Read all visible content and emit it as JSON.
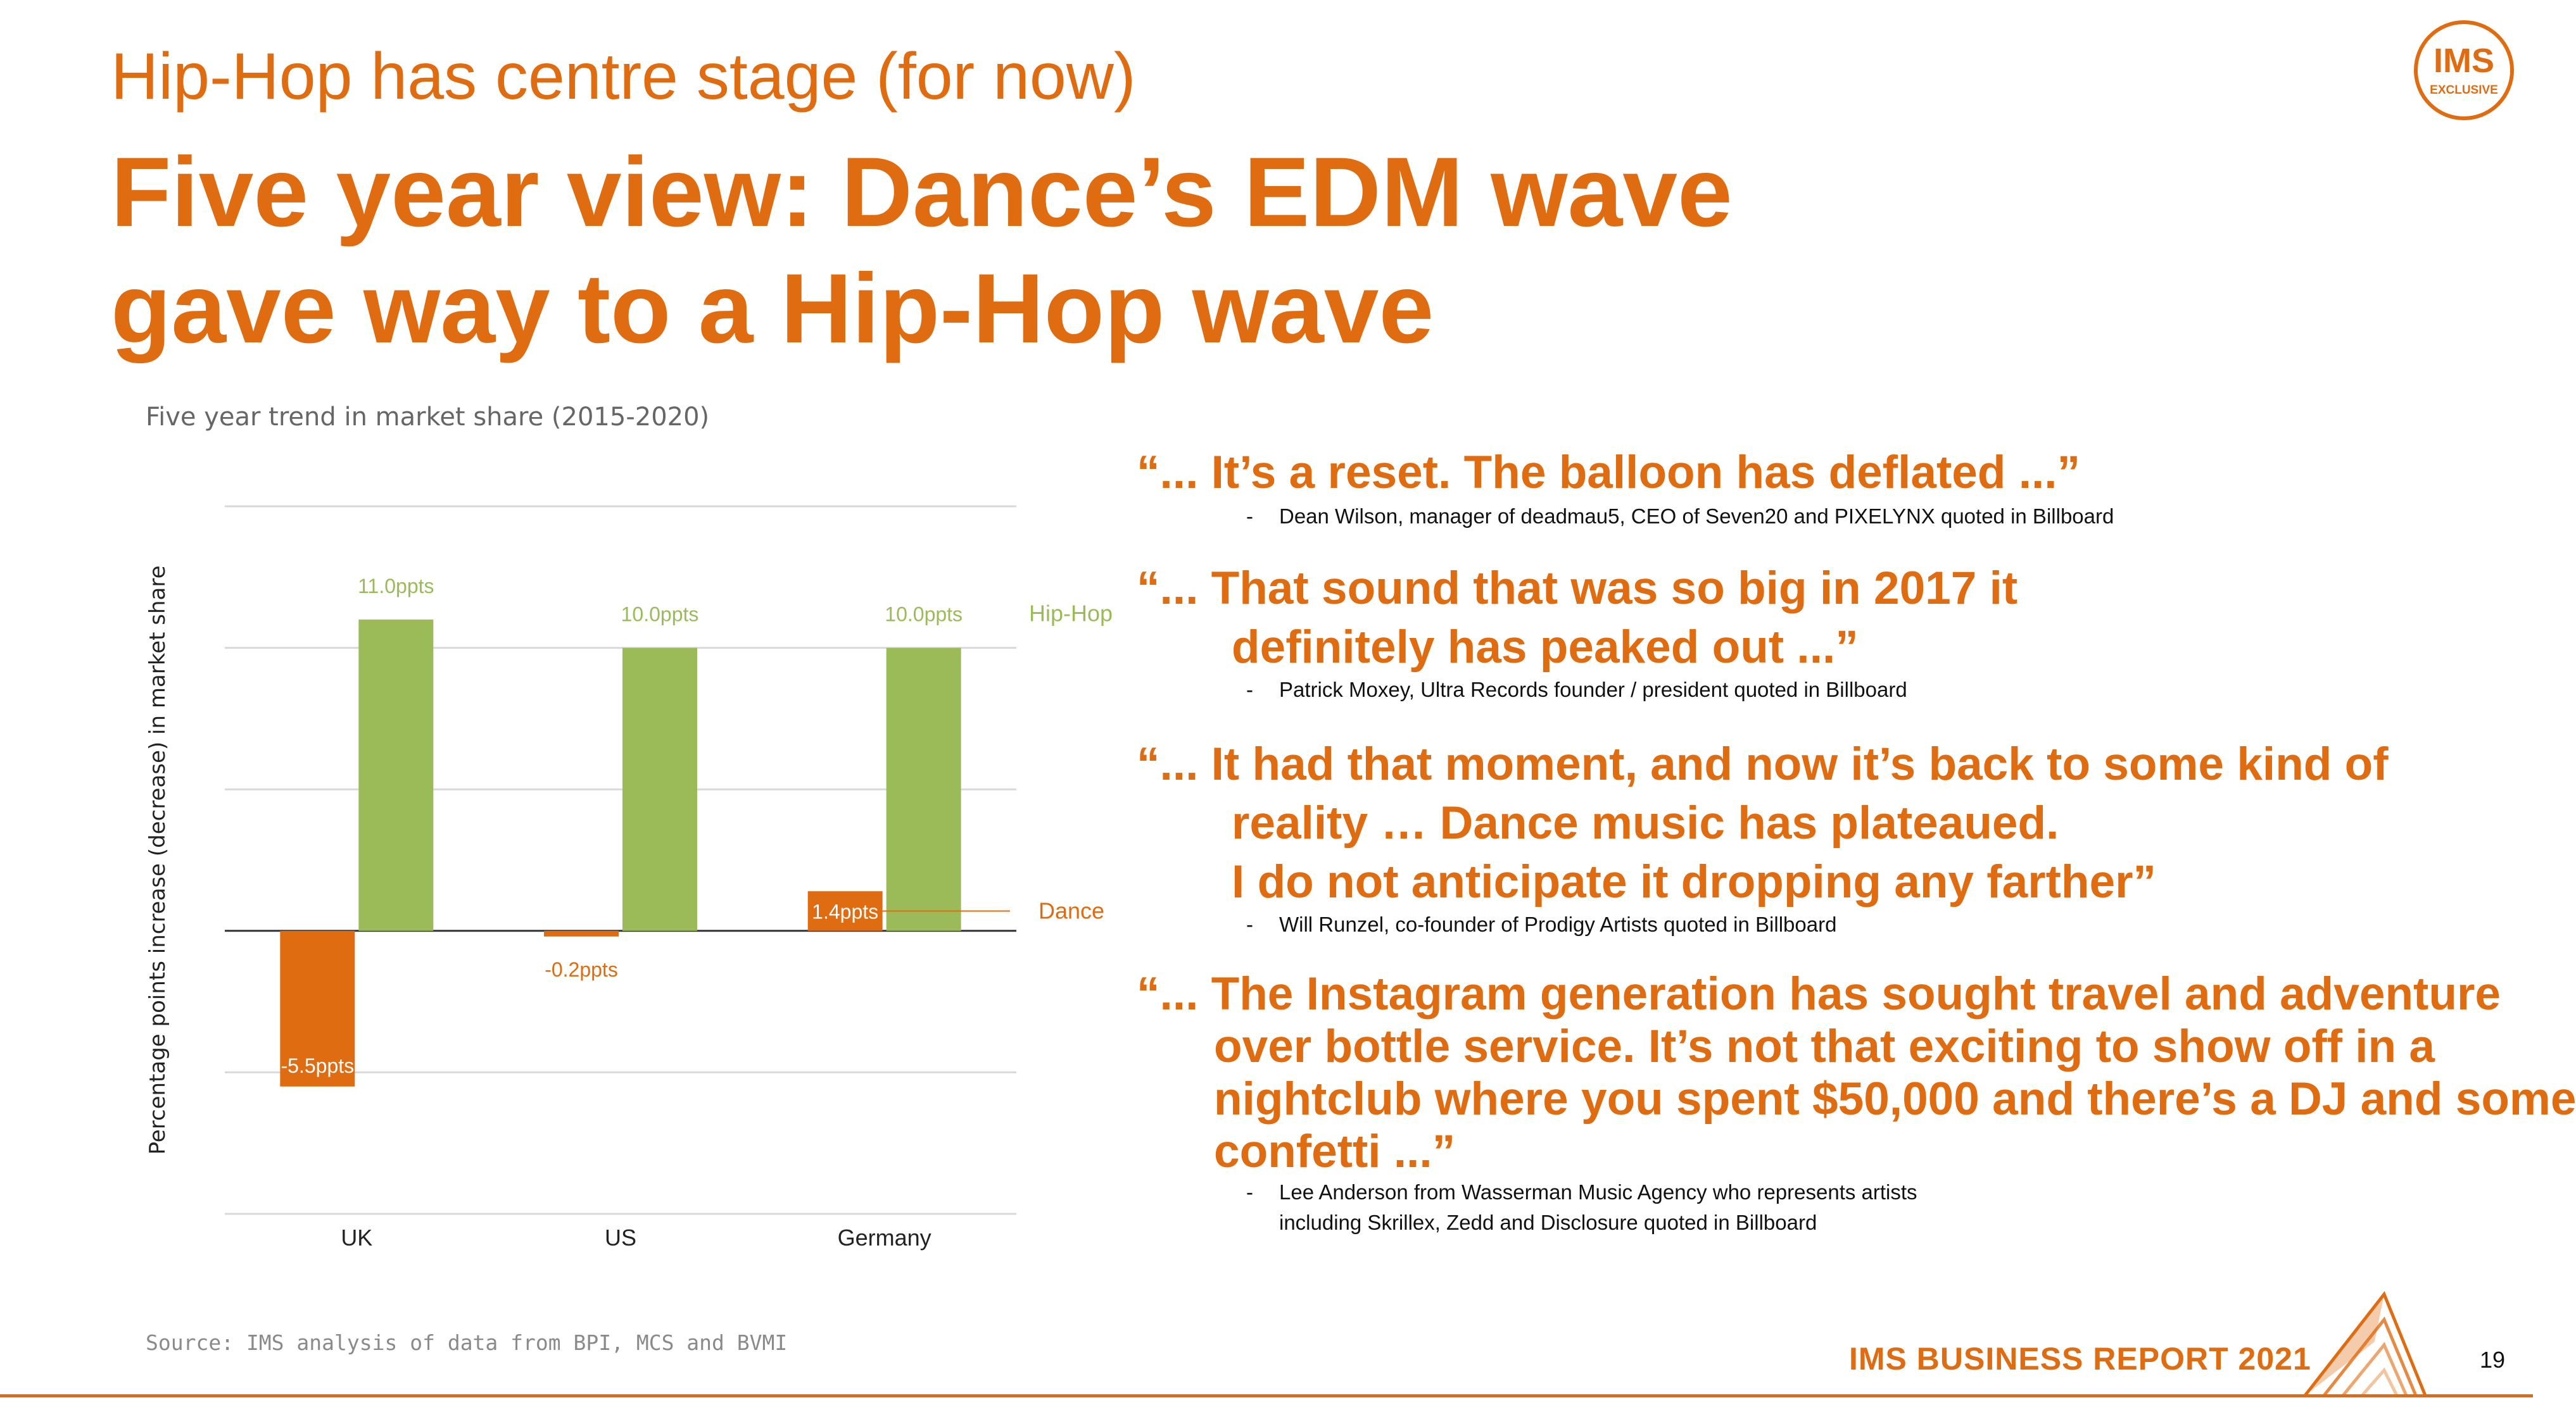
{
  "header": {
    "subtitle": "Hip-Hop has centre stage (for now)",
    "title_line1": "Five year view: Dance’s EDM wave",
    "title_line2": "gave way to a Hip-Hop wave"
  },
  "logo": {
    "line1": "IMS",
    "line2": "EXCLUSIVE"
  },
  "chart_caption": "Five year trend in market share (2015-2020)",
  "chart_data": {
    "type": "bar",
    "title": "Five year trend in market share (2015-2020)",
    "categories": [
      "UK",
      "US",
      "Germany"
    ],
    "series": [
      {
        "name": "Dance",
        "values": [
          -5.5,
          -0.2,
          1.4
        ],
        "labels": [
          "-5.5ppts",
          "-0.2ppts",
          "1.4ppts"
        ]
      },
      {
        "name": "Hip-Hop",
        "values": [
          11.0,
          10.0,
          10.0
        ],
        "labels": [
          "11.0ppts",
          "10.0ppts",
          "10.0ppts"
        ]
      }
    ],
    "ylabel": "Percentage points increase (decrease) in market share",
    "xlabel": "",
    "ylim": [
      -10,
      15
    ],
    "grid": true,
    "legend": "right, inline labels"
  },
  "source": "Source: IMS analysis of data from BPI, MCS and BVMI",
  "quotes": [
    {
      "lines": [
        "“... It’s a reset. The balloon has deflated ...”"
      ],
      "attribution": [
        "Dean Wilson, manager of deadmau5, CEO of Seven20 and PIXELYNX quoted in Billboard"
      ]
    },
    {
      "lines": [
        "“... That sound that was so big in 2017 it",
        "definitely has peaked out ...”"
      ],
      "attribution": [
        "Patrick Moxey, Ultra Records founder / president quoted in Billboard"
      ]
    },
    {
      "lines": [
        "“... It had that moment, and now it’s back to some kind of",
        "reality … Dance music has plateaued.",
        "I do not anticipate it dropping any farther”"
      ],
      "attribution": [
        "Will Runzel, co-founder of Prodigy Artists quoted in Billboard"
      ]
    },
    {
      "lines": [
        "“... The Instagram generation has sought travel and adventure",
        "over bottle service. It’s not that exciting to show off in a",
        "nightclub where you spent $50,000 and there’s a DJ and some",
        "confetti ...”"
      ],
      "attribution": [
        "Lee Anderson from Wasserman Music Agency who represents artists",
        "including Skrillex, Zedd and Disclosure quoted in Billboard"
      ]
    }
  ],
  "footer": {
    "report": "IMS BUSINESS REPORT 2021",
    "page": "19"
  },
  "colors": {
    "accent": "#E06C12",
    "dance": "#E06C12",
    "hiphop": "#9BBB59",
    "grid": "#d9d9d9"
  }
}
